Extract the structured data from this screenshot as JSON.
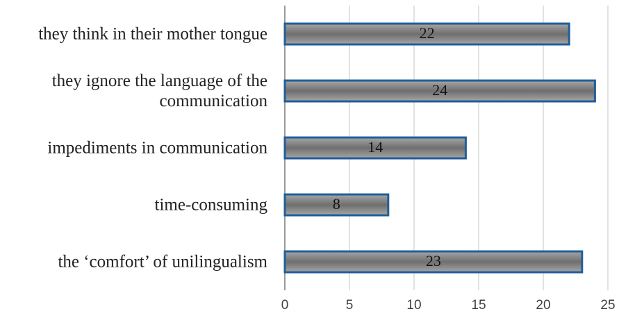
{
  "chart_data": {
    "type": "bar",
    "orientation": "horizontal",
    "categories": [
      "they think in their mother tongue",
      "they ignore the language of the communication",
      "impediments in communication",
      "time-consuming",
      "the ‘comfort’ of unilingualism"
    ],
    "values": [
      22,
      24,
      14,
      8,
      23
    ],
    "color": "#7f7f7f",
    "edge_color": "#1f5f99",
    "xlim": [
      0,
      25
    ],
    "xticks": [
      0,
      5,
      10,
      15,
      20,
      25
    ],
    "grid": true
  }
}
